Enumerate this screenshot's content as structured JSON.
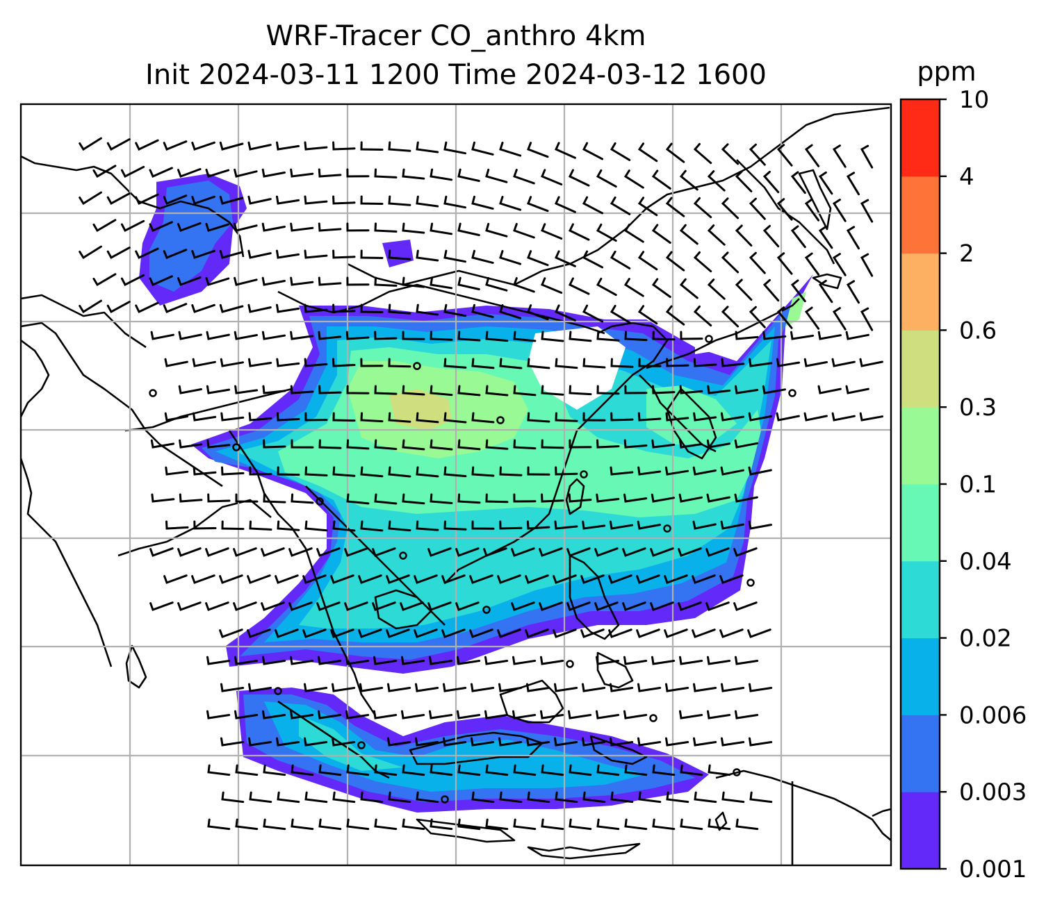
{
  "chart_data": {
    "type": "map",
    "title": "WRF-Tracer CO_anthro 4km",
    "subtitle": "Init 2024-03-11 1200 Time 2024-03-12 1600",
    "variable": "CO_anthro",
    "colorbar": {
      "units": "ppm",
      "levels": [
        "0.001",
        "0.003",
        "0.006",
        "0.02",
        "0.04",
        "0.1",
        "0.3",
        "0.6",
        "2",
        "4",
        "10"
      ],
      "colors": [
        "#6229f9",
        "#3473f2",
        "#08b1e9",
        "#2ddad5",
        "#68f8b6",
        "#99f995",
        "#cfde7f",
        "#fdb061",
        "#fe7338",
        "#ff2b17"
      ]
    },
    "gridlines": true,
    "wind_barbs": true,
    "map_colors": {
      "coastline": "#000000",
      "grid": "#b0b0b0"
    }
  }
}
